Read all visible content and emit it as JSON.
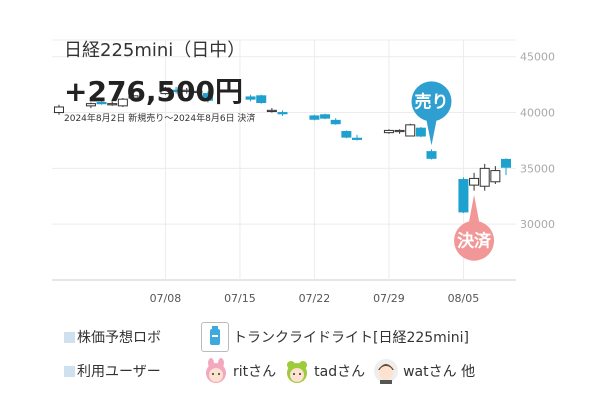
{
  "header": {
    "title": "日経225mini（日中）",
    "profit": "+276,500円",
    "period": "2024年8月2日 新規売り～2024年8月6日 決済"
  },
  "badges": {
    "sell": "売り",
    "settle": "決済"
  },
  "legend": {
    "robot_label": "株価予想ロボ",
    "robot_name": "トランクライドライト[日経225mini]",
    "users_label": "利用ユーザー",
    "users": [
      "ritさん",
      "tadさん",
      "watさん 他"
    ]
  },
  "colors": {
    "up": "#ffffff",
    "down": "#1ea1cf",
    "sell_badge": "#2f9fd1",
    "settle_badge": "#f19797",
    "legend_square": "#cfe0ef"
  },
  "chart_data": {
    "type": "candlestick",
    "ylim": [
      25000,
      46500
    ],
    "yticks": [
      30000,
      35000,
      40000,
      45000
    ],
    "ytick_labels": [
      "30000",
      "35000",
      "40000",
      "45000"
    ],
    "xtick_labels": [
      "07/08",
      "07/15",
      "07/22",
      "07/29",
      "08/05"
    ],
    "xtick_dates": [
      "2024-07-08",
      "2024-07-15",
      "2024-07-22",
      "2024-07-29",
      "2024-08-05"
    ],
    "candles": [
      {
        "date": "2024-06-28",
        "o": 40000,
        "h": 40700,
        "l": 39800,
        "c": 40500
      },
      {
        "date": "2024-07-01",
        "o": 40600,
        "h": 40900,
        "l": 40400,
        "c": 40800
      },
      {
        "date": "2024-07-02",
        "o": 40900,
        "h": 41000,
        "l": 40700,
        "c": 40800
      },
      {
        "date": "2024-07-03",
        "o": 40800,
        "h": 41000,
        "l": 40600,
        "c": 40800
      },
      {
        "date": "2024-07-04",
        "o": 40600,
        "h": 41300,
        "l": 40500,
        "c": 41200
      },
      {
        "date": "2024-07-05",
        "o": 41300,
        "h": 41600,
        "l": 41100,
        "c": 41500
      },
      {
        "date": "2024-07-08",
        "o": 41700,
        "h": 42300,
        "l": 41600,
        "c": 42200
      },
      {
        "date": "2024-07-09",
        "o": 42000,
        "h": 42300,
        "l": 41700,
        "c": 41900
      },
      {
        "date": "2024-07-10",
        "o": 41900,
        "h": 42200,
        "l": 41700,
        "c": 42000
      },
      {
        "date": "2024-07-11",
        "o": 41800,
        "h": 42100,
        "l": 41700,
        "c": 41900
      },
      {
        "date": "2024-07-12",
        "o": 41700,
        "h": 41900,
        "l": 40900,
        "c": 41100
      },
      {
        "date": "2024-07-16",
        "o": 41400,
        "h": 41600,
        "l": 41000,
        "c": 41200
      },
      {
        "date": "2024-07-17",
        "o": 41500,
        "h": 41600,
        "l": 40800,
        "c": 40900
      },
      {
        "date": "2024-07-18",
        "o": 40100,
        "h": 40400,
        "l": 40000,
        "c": 40200
      },
      {
        "date": "2024-07-19",
        "o": 40000,
        "h": 40200,
        "l": 39700,
        "c": 39900
      },
      {
        "date": "2024-07-22",
        "o": 39700,
        "h": 39800,
        "l": 39300,
        "c": 39400
      },
      {
        "date": "2024-07-23",
        "o": 39800,
        "h": 39900,
        "l": 39400,
        "c": 39500
      },
      {
        "date": "2024-07-24",
        "o": 39300,
        "h": 39500,
        "l": 38900,
        "c": 39000
      },
      {
        "date": "2024-07-25",
        "o": 38300,
        "h": 38400,
        "l": 37700,
        "c": 37800
      },
      {
        "date": "2024-07-26",
        "o": 37700,
        "h": 38000,
        "l": 37500,
        "c": 37600
      },
      {
        "date": "2024-07-29",
        "o": 38200,
        "h": 38500,
        "l": 38100,
        "c": 38400
      },
      {
        "date": "2024-07-30",
        "o": 38300,
        "h": 38500,
        "l": 38100,
        "c": 38400
      },
      {
        "date": "2024-07-31",
        "o": 37900,
        "h": 39000,
        "l": 37900,
        "c": 38900
      },
      {
        "date": "2024-08-01",
        "o": 38600,
        "h": 38700,
        "l": 37800,
        "c": 37900
      },
      {
        "date": "2024-08-02",
        "o": 36500,
        "h": 36700,
        "l": 35800,
        "c": 35900
      },
      {
        "date": "2024-08-05",
        "o": 34000,
        "h": 34200,
        "l": 31000,
        "c": 31100
      },
      {
        "date": "2024-08-06",
        "o": 33500,
        "h": 34600,
        "l": 33000,
        "c": 34100
      },
      {
        "date": "2024-08-07",
        "o": 33400,
        "h": 35400,
        "l": 33000,
        "c": 35000
      },
      {
        "date": "2024-08-08",
        "o": 33800,
        "h": 35200,
        "l": 33600,
        "c": 34800
      },
      {
        "date": "2024-08-09",
        "o": 35800,
        "h": 35900,
        "l": 34400,
        "c": 35100
      }
    ],
    "sell_marker_date": "2024-08-02",
    "settle_marker_date": "2024-08-06"
  }
}
